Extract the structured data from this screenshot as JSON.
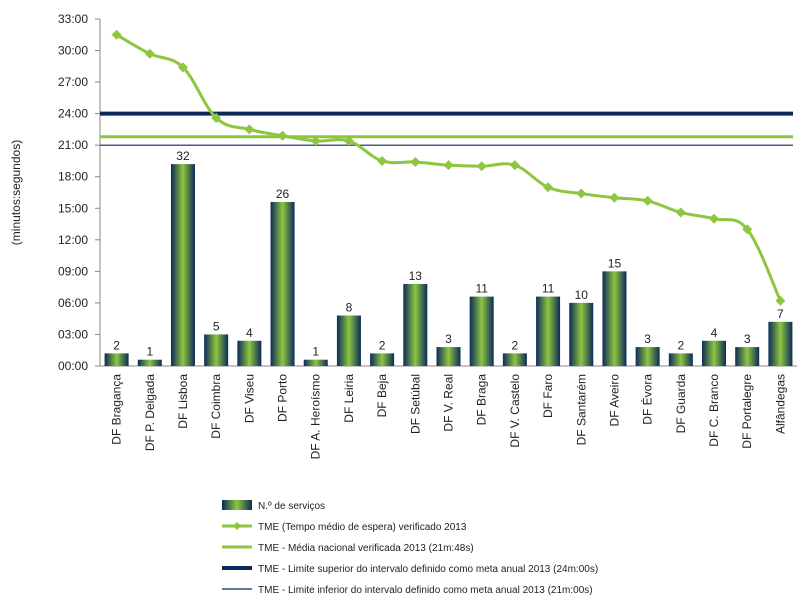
{
  "chart_data": {
    "type": "bar",
    "ylabel": "(minutos:segundos)",
    "ylim": [
      0,
      33
    ],
    "y_ticks": [
      "00:00",
      "03:00",
      "06:00",
      "09:00",
      "12:00",
      "15:00",
      "18:00",
      "21:00",
      "24:00",
      "27:00",
      "30:00",
      "33:00"
    ],
    "categories": [
      "DF Bragança",
      "DF P. Delgada",
      "DF Lisboa",
      "DF Coimbra",
      "DF Viseu",
      "DF Porto",
      "DF A. Heroísmo",
      "DF Leiria",
      "DF Beja",
      "DF Setúbal",
      "DF V. Real",
      "DF Braga",
      "DF V. Castelo",
      "DF Faro",
      "DF Santarém",
      "DF Aveiro",
      "DF Évora",
      "DF Guarda",
      "DF C. Branco",
      "DF Portalegre",
      "Alfândegas"
    ],
    "series": [
      {
        "name": "N.º de serviços",
        "kind": "bar",
        "data_labels": [
          "2",
          "1",
          "32",
          "5",
          "4",
          "26",
          "1",
          "8",
          "2",
          "13",
          "3",
          "11",
          "2",
          "11",
          "10",
          "15",
          "3",
          "2",
          "4",
          "3",
          "7"
        ],
        "values_minutes": [
          1.2,
          0.6,
          19.2,
          3.0,
          2.4,
          15.6,
          0.6,
          4.8,
          1.2,
          7.8,
          1.8,
          6.6,
          1.2,
          6.6,
          6.0,
          9.0,
          1.8,
          1.2,
          2.4,
          1.8,
          4.2
        ]
      },
      {
        "name": "TME (Tempo médio de espera) verificado 2013",
        "kind": "line",
        "color": "#8dc63f",
        "values_minutes": [
          31.5,
          29.7,
          28.4,
          23.6,
          22.5,
          21.9,
          21.4,
          21.4,
          19.5,
          19.4,
          19.1,
          19.0,
          19.1,
          17.0,
          16.4,
          16.0,
          15.7,
          14.6,
          14.0,
          13.0,
          6.2
        ]
      },
      {
        "name": "TME - Média nacional verificada 2013 (21m:48s)",
        "kind": "hline",
        "color": "#8dc63f",
        "value_minutes": 21.8
      },
      {
        "name": "TME - Limite superior do intervalo definido como meta anual 2013 (24m:00s)",
        "kind": "hline",
        "color": "#0b2a5a",
        "value_minutes": 24
      },
      {
        "name": "TME - Limite inferior do intervalo definido como meta anual 2013 (21m:00s)",
        "kind": "hline",
        "color": "#0b2a5a",
        "value_minutes": 21
      }
    ],
    "legend_position": "bottom"
  }
}
